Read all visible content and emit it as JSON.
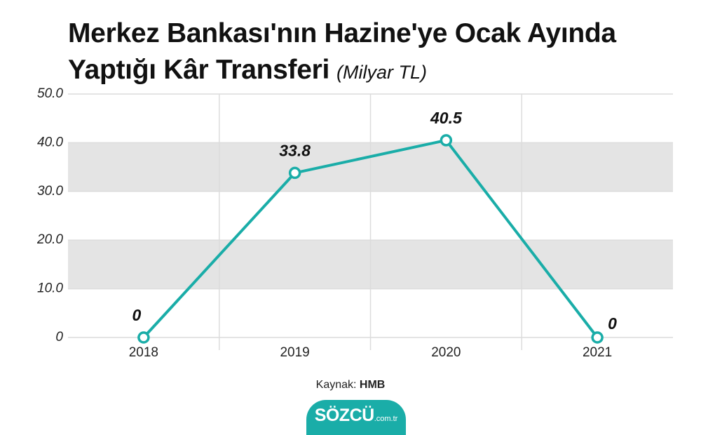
{
  "chart_data": {
    "type": "line",
    "title": "Merkez Bankası'nın Hazine'ye Ocak Ayında Yaptığı Kâr Transferi",
    "subtitle": "(Milyar TL)",
    "categories": [
      "2018",
      "2019",
      "2020",
      "2021"
    ],
    "values": [
      0,
      33.8,
      40.5,
      0
    ],
    "color": "#1aada8",
    "ylim": [
      0,
      50
    ],
    "yticks": [
      0,
      {
        "value": 10,
        "label": "10.0"
      },
      {
        "value": 20,
        "label": "20.0"
      },
      {
        "value": 30,
        "label": "30.0"
      },
      {
        "value": 40,
        "label": "40.0"
      },
      {
        "value": 50,
        "label": "50.0"
      }
    ],
    "grid": true,
    "band_color": "#e4e4e4",
    "source_label": "Kaynak:",
    "source": "HMB"
  },
  "logo": {
    "name": "SÖZCÜ",
    "domain": ".com.tr"
  }
}
